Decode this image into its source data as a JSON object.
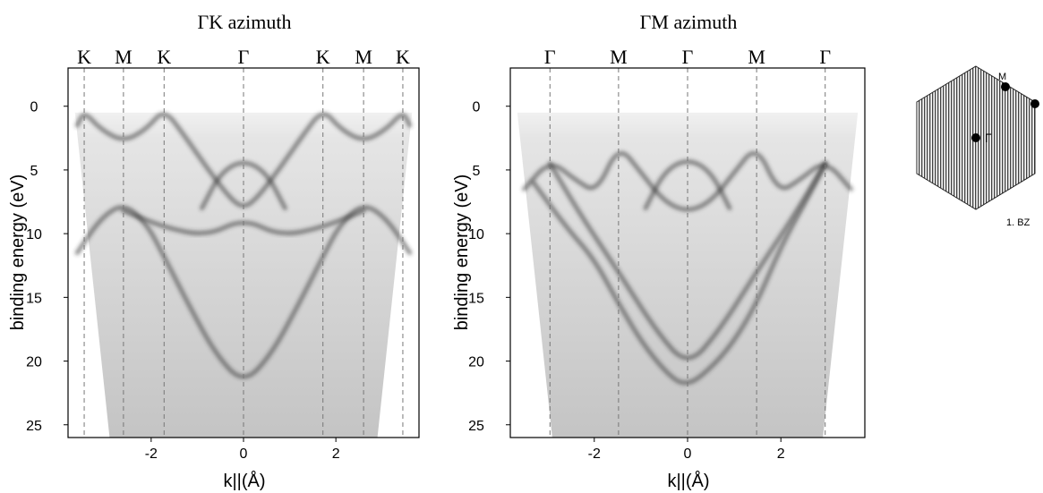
{
  "chart_data": [
    {
      "type": "heatmap",
      "title": "ΓK azimuth",
      "xlabel": "k||(Å)",
      "ylabel": "binding energy (eV)",
      "xlim": [
        -3.8,
        3.8
      ],
      "ylim": [
        26,
        -3
      ],
      "x_ticks": [
        -2,
        0,
        2
      ],
      "y_ticks": [
        0,
        5,
        10,
        15,
        20,
        25
      ],
      "symmetry_points": [
        {
          "label": "K",
          "x": -3.45
        },
        {
          "label": "M",
          "x": -2.6
        },
        {
          "label": "K",
          "x": -1.72
        },
        {
          "label": "Γ",
          "x": 0
        },
        {
          "label": "K",
          "x": 1.72
        },
        {
          "label": "M",
          "x": 2.6
        },
        {
          "label": "K",
          "x": 3.45
        }
      ],
      "bands": [
        {
          "name": "upper-band",
          "points": [
            [
              -3.6,
              1.5
            ],
            [
              -3.45,
              0.4
            ],
            [
              -3.1,
              1.8
            ],
            [
              -2.6,
              2.8
            ],
            [
              -2.1,
              1.8
            ],
            [
              -1.72,
              0.2
            ],
            [
              -1.3,
              2.2
            ],
            [
              -0.8,
              4.8
            ],
            [
              -0.3,
              7.2
            ],
            [
              0,
              8
            ],
            [
              0.3,
              7.2
            ],
            [
              0.8,
              4.8
            ],
            [
              1.3,
              2.2
            ],
            [
              1.72,
              0.2
            ],
            [
              2.1,
              1.8
            ],
            [
              2.6,
              2.8
            ],
            [
              3.1,
              1.8
            ],
            [
              3.45,
              0.4
            ],
            [
              3.6,
              1.5
            ]
          ]
        },
        {
          "name": "central-dome",
          "points": [
            [
              -0.9,
              8
            ],
            [
              -0.5,
              5.2
            ],
            [
              0,
              4.2
            ],
            [
              0.5,
              5.2
            ],
            [
              0.9,
              8
            ]
          ]
        },
        {
          "name": "sigma-band-left",
          "points": [
            [
              -3.6,
              11.5
            ],
            [
              -3.1,
              8.8
            ],
            [
              -2.6,
              7.6
            ],
            [
              -2.1,
              9.2
            ],
            [
              -1.72,
              11.8
            ],
            [
              -1.2,
              15.5
            ],
            [
              -0.6,
              19.5
            ],
            [
              0,
              21.8
            ],
            [
              0.6,
              19.5
            ],
            [
              1.2,
              15.5
            ],
            [
              1.72,
              11.8
            ],
            [
              2.1,
              9.2
            ],
            [
              2.6,
              7.6
            ],
            [
              3.1,
              8.8
            ],
            [
              3.6,
              11.5
            ]
          ]
        },
        {
          "name": "crossing-band",
          "points": [
            [
              -2.6,
              8.2
            ],
            [
              -1.72,
              9.5
            ],
            [
              -0.8,
              10.2
            ],
            [
              0,
              8.8
            ],
            [
              0.8,
              10.2
            ],
            [
              1.72,
              9.5
            ],
            [
              2.6,
              8.2
            ]
          ]
        }
      ]
    },
    {
      "type": "heatmap",
      "title": "ΓM azimuth",
      "xlabel": "k||(Å)",
      "ylabel": "binding energy (eV)",
      "xlim": [
        -3.8,
        3.8
      ],
      "ylim": [
        26,
        -3
      ],
      "x_ticks": [
        -2,
        0,
        2
      ],
      "y_ticks": [
        0,
        5,
        10,
        15,
        20,
        25
      ],
      "symmetry_points": [
        {
          "label": "Γ",
          "x": -2.95
        },
        {
          "label": "M",
          "x": -1.48
        },
        {
          "label": "Γ",
          "x": 0
        },
        {
          "label": "M",
          "x": 1.48
        },
        {
          "label": "Γ",
          "x": 2.95
        }
      ],
      "bands": [
        {
          "name": "upper-band",
          "points": [
            [
              -3.5,
              6.5
            ],
            [
              -2.95,
              4.2
            ],
            [
              -2.4,
              5.8
            ],
            [
              -1.95,
              6.8
            ],
            [
              -1.48,
              3
            ],
            [
              -1.0,
              5.2
            ],
            [
              -0.5,
              7.5
            ],
            [
              0,
              8.3
            ],
            [
              0.5,
              7.5
            ],
            [
              1.0,
              5.2
            ],
            [
              1.48,
              3
            ],
            [
              1.95,
              6.8
            ],
            [
              2.4,
              5.8
            ],
            [
              2.95,
              4.2
            ],
            [
              3.5,
              6.5
            ]
          ]
        },
        {
          "name": "central-dome",
          "points": [
            [
              -0.9,
              8
            ],
            [
              -0.5,
              5.1
            ],
            [
              0,
              4.1
            ],
            [
              0.5,
              5.1
            ],
            [
              0.9,
              8
            ]
          ]
        },
        {
          "name": "sigma-band-left",
          "points": [
            [
              -3.3,
              6
            ],
            [
              -2.6,
              9.5
            ],
            [
              -2.0,
              12
            ],
            [
              -1.48,
              15.5
            ],
            [
              -0.9,
              19
            ],
            [
              -0.3,
              21.5
            ],
            [
              0,
              21.8
            ],
            [
              0.3,
              21.2
            ],
            [
              0.9,
              19
            ],
            [
              1.48,
              15.5
            ],
            [
              2.0,
              11
            ],
            [
              2.6,
              7
            ],
            [
              2.95,
              4.5
            ]
          ]
        },
        {
          "name": "sigma-band-cross",
          "points": [
            [
              -2.95,
              4.5
            ],
            [
              -2.3,
              8.5
            ],
            [
              -1.48,
              13
            ],
            [
              -0.7,
              17.5
            ],
            [
              0,
              20.5
            ],
            [
              0.7,
              17.5
            ],
            [
              1.48,
              13
            ],
            [
              2.3,
              8.5
            ],
            [
              2.95,
              4.5
            ]
          ]
        }
      ]
    }
  ],
  "bz_inset": {
    "label_m": "M",
    "label_gamma": "Γ",
    "caption": "1. BZ"
  }
}
